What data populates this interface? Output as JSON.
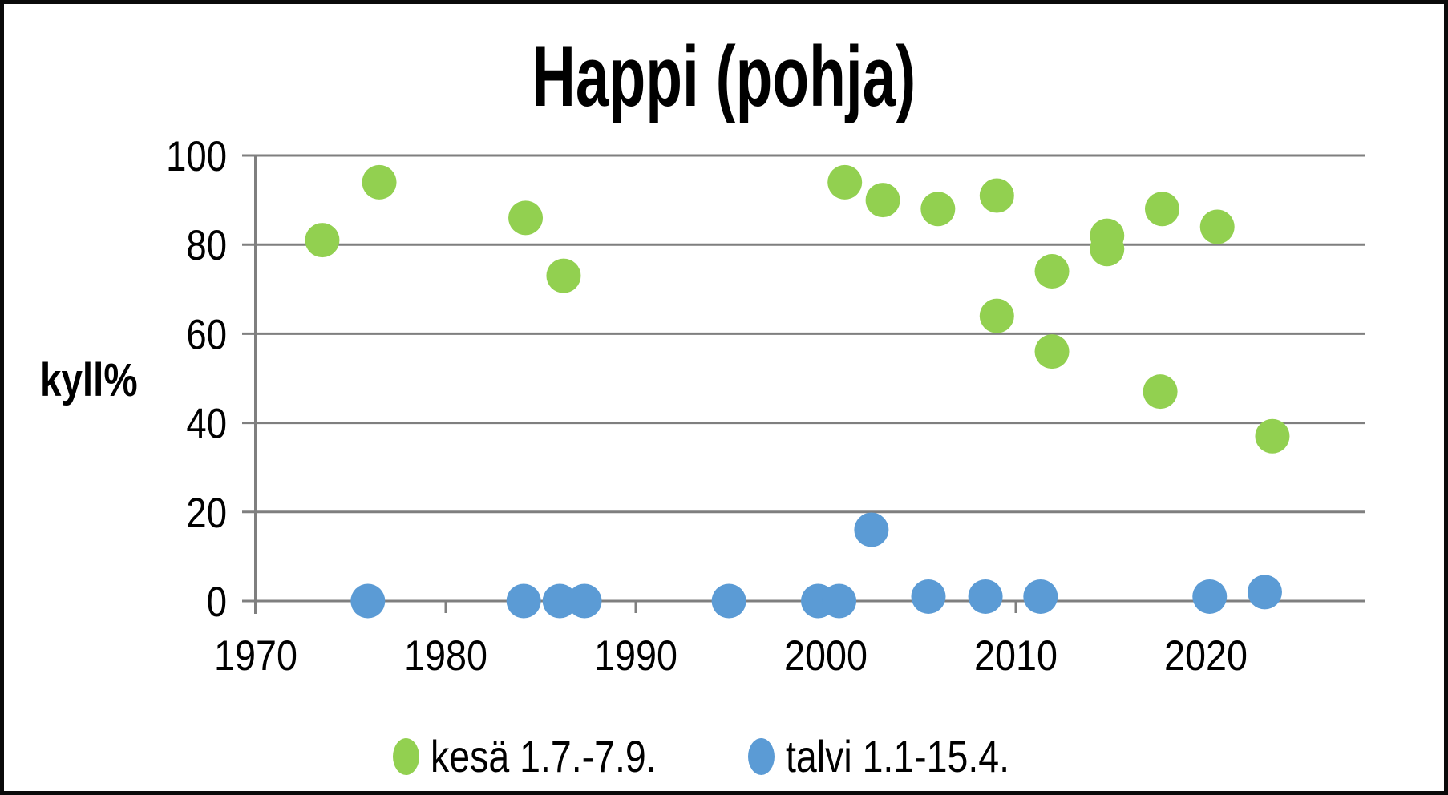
{
  "title": "Happi (pohja)",
  "y_axis_label": "kyll%",
  "colors": {
    "summer_green": "#92D050",
    "winter_blue": "#5B9BD5",
    "grid_gray": "#7F7F7F",
    "text_black": "#000000",
    "frame_black": "#0a0a0a"
  },
  "chart_data": {
    "type": "scatter",
    "title": "Happi (pohja)",
    "xlabel": "",
    "ylabel": "kyll%",
    "xlim": [
      1970,
      2028.4
    ],
    "ylim": [
      0,
      100
    ],
    "x_ticks": [
      1970,
      1980,
      1990,
      2000,
      2010,
      2020
    ],
    "y_ticks": [
      0,
      20,
      40,
      60,
      80,
      100
    ],
    "grid": true,
    "legend_position": "bottom",
    "series": [
      {
        "name": "kesä 1.7.-7.9.",
        "color": "#92D050",
        "points": [
          [
            1973.5,
            81
          ],
          [
            1976.5,
            94
          ],
          [
            1984.2,
            86
          ],
          [
            1986.2,
            73
          ],
          [
            2001.0,
            94
          ],
          [
            2003.0,
            90
          ],
          [
            2005.9,
            88
          ],
          [
            2009.0,
            91
          ],
          [
            2009.0,
            64
          ],
          [
            2011.9,
            74
          ],
          [
            2011.9,
            56
          ],
          [
            2014.8,
            82
          ],
          [
            2014.8,
            79
          ],
          [
            2017.7,
            88
          ],
          [
            2017.6,
            47
          ],
          [
            2020.6,
            84
          ],
          [
            2023.5,
            37
          ]
        ]
      },
      {
        "name": "talvi 1.1-15.4.",
        "color": "#5B9BD5",
        "points": [
          [
            1975.9,
            0
          ],
          [
            1984.1,
            0
          ],
          [
            1986.0,
            0
          ],
          [
            1987.3,
            0
          ],
          [
            1994.9,
            0
          ],
          [
            1999.6,
            0
          ],
          [
            2000.7,
            0
          ],
          [
            2002.4,
            16
          ],
          [
            2005.4,
            1
          ],
          [
            2008.4,
            1
          ],
          [
            2011.3,
            1
          ],
          [
            2020.2,
            1
          ],
          [
            2023.1,
            2
          ]
        ]
      }
    ]
  }
}
